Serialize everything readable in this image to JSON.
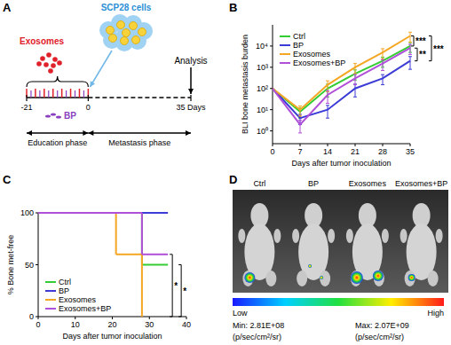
{
  "schematic": {
    "label": "A",
    "exosomes": "Exosomes",
    "cells": "SCP28 cells",
    "analysis": "Analysis",
    "drug": "BP",
    "timeline": {
      "ticks": [
        {
          "value": -21,
          "label": "-21"
        },
        {
          "value": 0,
          "label": "0"
        },
        {
          "value": 35,
          "label": "35 Days"
        }
      ],
      "phases": [
        "Education phase",
        "Metastasis phase"
      ]
    }
  },
  "chart_data": [
    {
      "type": "line",
      "title": "B",
      "x_label": "Days after tumor inoculation",
      "y_label": "BLI bone metastasis burden",
      "x": [
        0,
        7,
        14,
        21,
        28,
        35
      ],
      "xlim": [
        0,
        35
      ],
      "xticks": [
        0,
        7,
        14,
        21,
        28,
        35
      ],
      "ylim": [
        0.25,
        100000
      ],
      "yticks": [
        {
          "value": 1,
          "label": "10⁰"
        },
        {
          "value": 10,
          "label": "10¹"
        },
        {
          "value": 100,
          "label": "10²"
        },
        {
          "value": 1000,
          "label": "10³"
        },
        {
          "value": 10000,
          "label": "10⁴"
        }
      ],
      "log": "y",
      "grid": false,
      "legend": "upper left",
      "series": [
        {
          "name": "Ctrl",
          "color": "#33cc33",
          "values": [
            100,
            8,
            100,
            500,
            2000,
            10000
          ],
          "errors": [
            0,
            4,
            60,
            250,
            1000,
            5000
          ]
        },
        {
          "name": "BP",
          "color": "#3b3bd6",
          "values": [
            100,
            4,
            10,
            100,
            300,
            2000
          ],
          "errors": [
            0,
            2,
            6,
            60,
            150,
            1200
          ]
        },
        {
          "name": "Exosomes",
          "color": "#f5a623",
          "values": [
            100,
            10,
            150,
            1000,
            5000,
            30000
          ],
          "errors": [
            0,
            5,
            80,
            500,
            2500,
            15000
          ]
        },
        {
          "name": "Exosomes+BP",
          "color": "#b04fd8",
          "values": [
            100,
            2,
            50,
            300,
            1500,
            8000
          ],
          "errors": [
            0,
            1.2,
            30,
            150,
            800,
            4000
          ]
        }
      ],
      "annotations": [
        "***",
        "***",
        "**"
      ]
    },
    {
      "type": "step",
      "title": "C",
      "x_label": "Days after tumor inoculation",
      "y_label": "% Bone met-free",
      "xlim": [
        0,
        40
      ],
      "xticks": [
        0,
        10,
        20,
        30,
        40
      ],
      "ylim": [
        0,
        100
      ],
      "yticks": [
        0,
        50,
        100
      ],
      "grid": false,
      "legend": "lower left",
      "series": [
        {
          "name": "Ctrl",
          "color": "#33cc33",
          "x": [
            0,
            28,
            35
          ],
          "values": [
            100,
            50,
            50
          ]
        },
        {
          "name": "BP",
          "color": "#3b3bd6",
          "x": [
            0,
            35
          ],
          "values": [
            100,
            100
          ]
        },
        {
          "name": "Exosomes",
          "color": "#f5a623",
          "x": [
            0,
            21,
            28
          ],
          "values": [
            100,
            60,
            0
          ]
        },
        {
          "name": "Exosomes+BP",
          "color": "#b04fd8",
          "x": [
            0,
            28,
            35
          ],
          "values": [
            100,
            60,
            60
          ]
        }
      ],
      "annotations": [
        "*",
        "*"
      ]
    }
  ],
  "images": {
    "label": "D",
    "groups": [
      "Ctrl",
      "BP",
      "Exosomes",
      "Exosomes+BP"
    ],
    "colorbar": {
      "low": "Low",
      "high": "High",
      "min": "Min: 2.81E+08",
      "max": "Max: 2.07E+09",
      "unit": "(p/sec/cm²/sr)"
    }
  }
}
